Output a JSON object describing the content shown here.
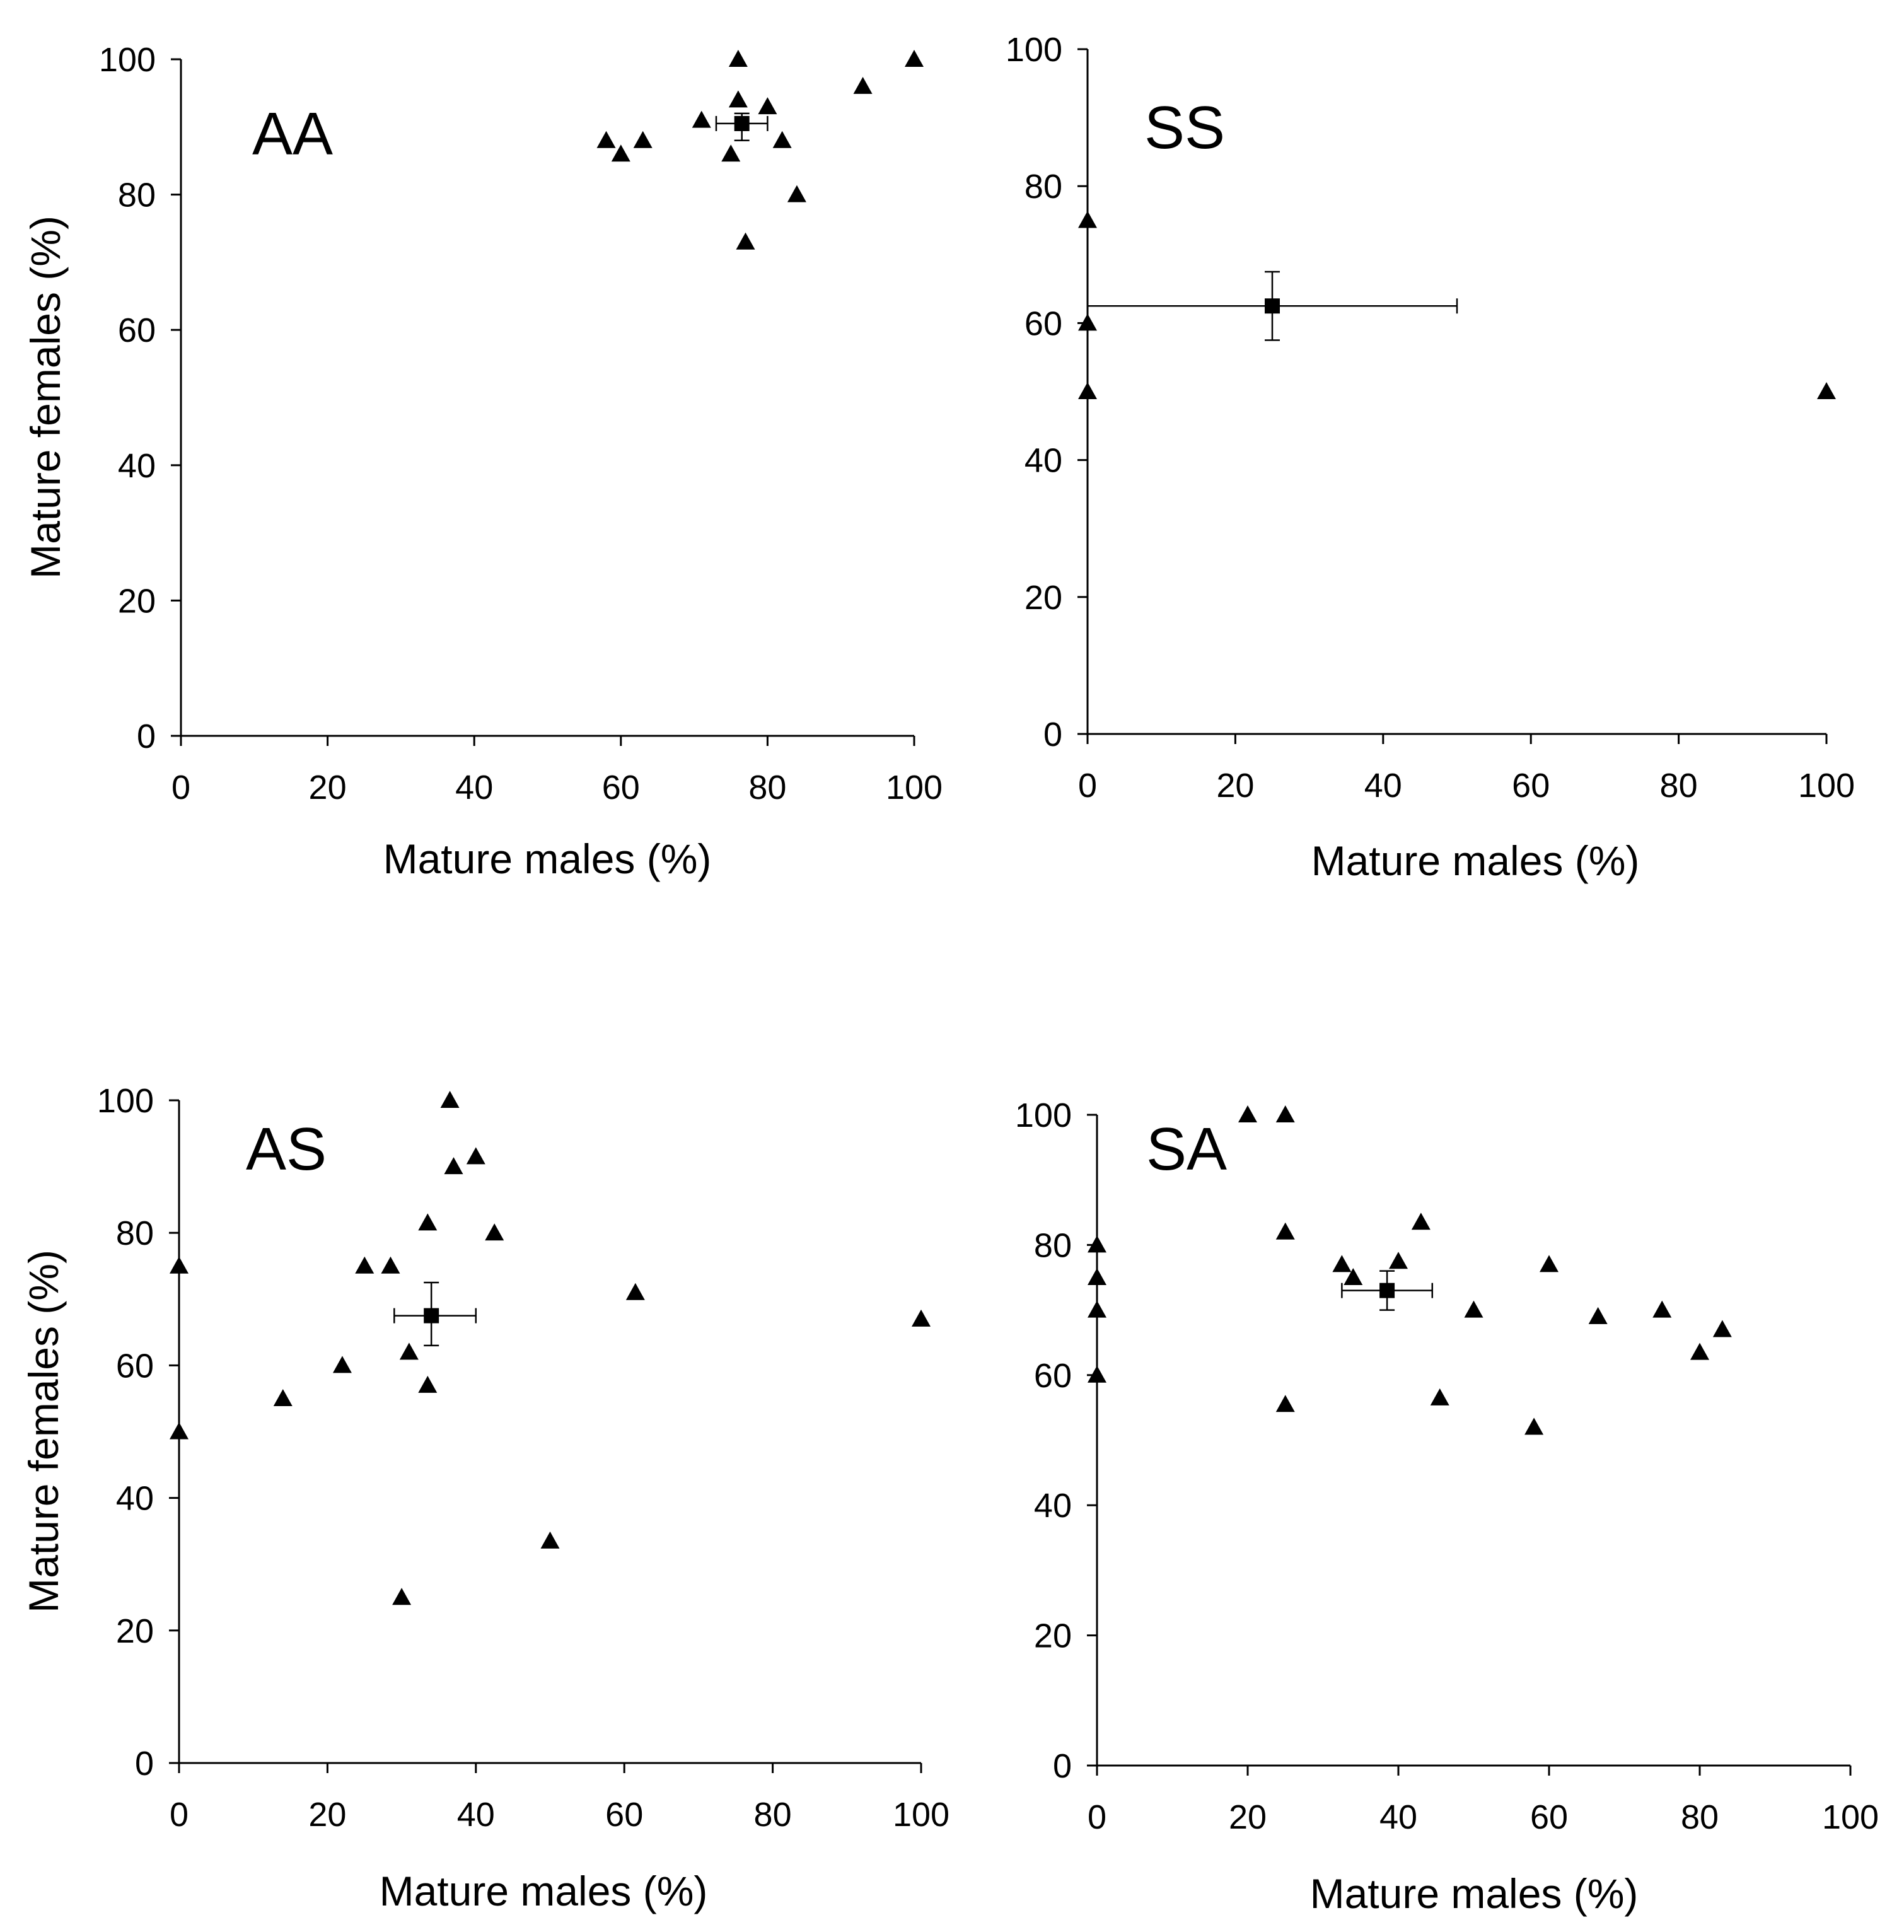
{
  "figure": {
    "background": "#ffffff",
    "marker_color": "#000000"
  },
  "chart_data": [
    {
      "type": "scatter",
      "panel_label": "AA",
      "xlabel": "Mature males (%)",
      "ylabel": "Mature females (%)",
      "xlim": [
        0,
        100
      ],
      "ylim": [
        0,
        100
      ],
      "xticks": [
        "0",
        "20",
        "40",
        "60",
        "80",
        "100"
      ],
      "yticks": [
        "0",
        "20",
        "40",
        "60",
        "80",
        "100"
      ],
      "grid": false,
      "points": [
        {
          "x": 58,
          "y": 88
        },
        {
          "x": 60,
          "y": 86
        },
        {
          "x": 63,
          "y": 88
        },
        {
          "x": 71,
          "y": 91
        },
        {
          "x": 75,
          "y": 86
        },
        {
          "x": 76,
          "y": 100
        },
        {
          "x": 76,
          "y": 94
        },
        {
          "x": 77,
          "y": 73
        },
        {
          "x": 80,
          "y": 93
        },
        {
          "x": 82,
          "y": 88
        },
        {
          "x": 84,
          "y": 80
        },
        {
          "x": 93,
          "y": 96
        },
        {
          "x": 100,
          "y": 100
        }
      ],
      "mean": {
        "x": 76.5,
        "y": 90.5,
        "x_err": [
          73,
          80
        ],
        "y_err": [
          88,
          92
        ]
      }
    },
    {
      "type": "scatter",
      "panel_label": "SS",
      "xlabel": "Mature males (%)",
      "ylabel": "",
      "xlim": [
        0,
        100
      ],
      "ylim": [
        0,
        100
      ],
      "xticks": [
        "0",
        "20",
        "40",
        "60",
        "80",
        "100"
      ],
      "yticks": [
        "0",
        "20",
        "40",
        "60",
        "80",
        "100"
      ],
      "grid": false,
      "points": [
        {
          "x": 0,
          "y": 75
        },
        {
          "x": 0,
          "y": 60
        },
        {
          "x": 0,
          "y": 50
        },
        {
          "x": 100,
          "y": 50
        }
      ],
      "mean": {
        "x": 25,
        "y": 62.5,
        "x_err": [
          0,
          50
        ],
        "y_err": [
          57.5,
          67.5
        ]
      }
    },
    {
      "type": "scatter",
      "panel_label": "AS",
      "xlabel": "Mature males (%)",
      "ylabel": "Mature females (%)",
      "xlim": [
        0,
        100
      ],
      "ylim": [
        0,
        100
      ],
      "xticks": [
        "0",
        "20",
        "40",
        "60",
        "80",
        "100"
      ],
      "yticks": [
        "0",
        "20",
        "40",
        "60",
        "80",
        "100"
      ],
      "grid": false,
      "points": [
        {
          "x": 0,
          "y": 75
        },
        {
          "x": 0,
          "y": 50
        },
        {
          "x": 14,
          "y": 55
        },
        {
          "x": 22,
          "y": 60
        },
        {
          "x": 25,
          "y": 75
        },
        {
          "x": 28.5,
          "y": 75
        },
        {
          "x": 30,
          "y": 25
        },
        {
          "x": 31,
          "y": 62
        },
        {
          "x": 33.5,
          "y": 81.5
        },
        {
          "x": 33.5,
          "y": 57
        },
        {
          "x": 36.5,
          "y": 100
        },
        {
          "x": 37,
          "y": 90
        },
        {
          "x": 40,
          "y": 91.5
        },
        {
          "x": 42.5,
          "y": 80
        },
        {
          "x": 50,
          "y": 33.5
        },
        {
          "x": 61.5,
          "y": 71
        },
        {
          "x": 100,
          "y": 67
        }
      ],
      "mean": {
        "x": 34,
        "y": 67.5,
        "x_err": [
          29,
          40
        ],
        "y_err": [
          63,
          72.5
        ]
      }
    },
    {
      "type": "scatter",
      "panel_label": "SA",
      "xlabel": "Mature males (%)",
      "ylabel": "",
      "xlim": [
        0,
        100
      ],
      "ylim": [
        0,
        100
      ],
      "xticks": [
        "0",
        "20",
        "40",
        "60",
        "80",
        "100"
      ],
      "yticks": [
        "0",
        "20",
        "40",
        "60",
        "80",
        "100"
      ],
      "grid": false,
      "points": [
        {
          "x": 0,
          "y": 80
        },
        {
          "x": 0,
          "y": 75
        },
        {
          "x": 0,
          "y": 70
        },
        {
          "x": 0,
          "y": 60
        },
        {
          "x": 20,
          "y": 100
        },
        {
          "x": 25,
          "y": 100
        },
        {
          "x": 25,
          "y": 82
        },
        {
          "x": 25,
          "y": 55.5
        },
        {
          "x": 32.5,
          "y": 77
        },
        {
          "x": 34,
          "y": 75
        },
        {
          "x": 40,
          "y": 77.5
        },
        {
          "x": 43,
          "y": 83.5
        },
        {
          "x": 45.5,
          "y": 56.5
        },
        {
          "x": 50,
          "y": 70
        },
        {
          "x": 58,
          "y": 52
        },
        {
          "x": 60,
          "y": 77
        },
        {
          "x": 66.5,
          "y": 69
        },
        {
          "x": 75,
          "y": 70
        },
        {
          "x": 80,
          "y": 63.5
        },
        {
          "x": 83,
          "y": 67
        }
      ],
      "mean": {
        "x": 38.5,
        "y": 73,
        "x_err": [
          32.5,
          44.5
        ],
        "y_err": [
          70,
          76
        ]
      }
    }
  ]
}
